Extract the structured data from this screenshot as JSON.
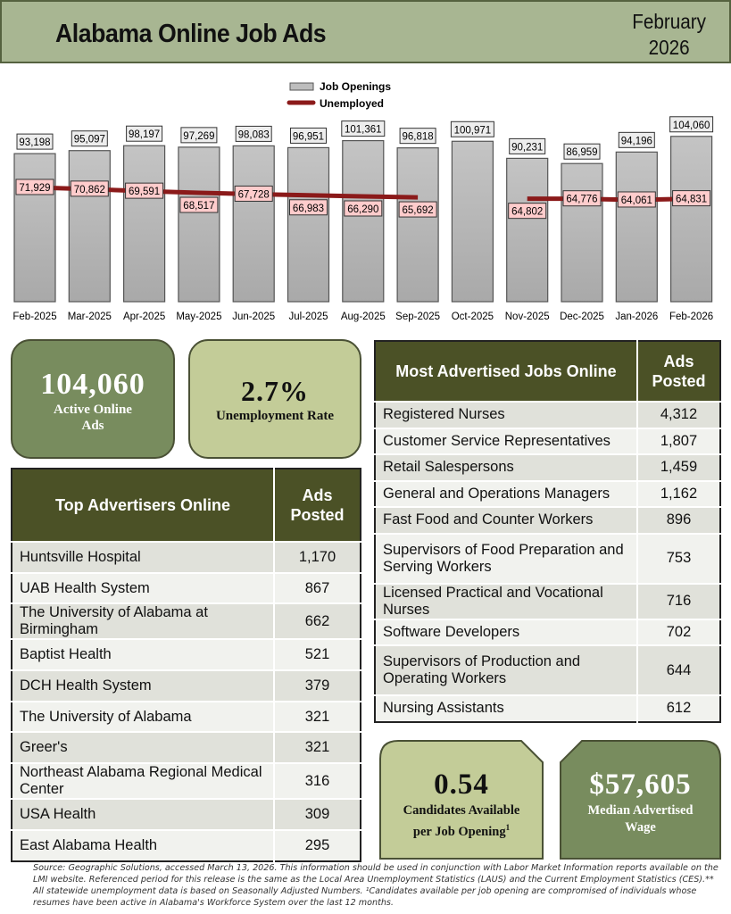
{
  "header": {
    "title": "Alabama Online Job Ads",
    "date_line1": "February",
    "date_line2": "2026"
  },
  "chart_data": {
    "type": "bar",
    "categories": [
      "Feb-2025",
      "Mar-2025",
      "Apr-2025",
      "May-2025",
      "Jun-2025",
      "Jul-2025",
      "Aug-2025",
      "Sep-2025",
      "Oct-2025",
      "Nov-2025",
      "Dec-2025",
      "Jan-2026",
      "Feb-2026"
    ],
    "series": [
      {
        "name": "Job Openings",
        "kind": "bar",
        "color": "#bdbdbd",
        "values": [
          93198,
          95097,
          98197,
          97269,
          98083,
          96951,
          101361,
          96818,
          100971,
          90231,
          86959,
          94196,
          104060
        ],
        "labels": [
          "93,198",
          "95,097",
          "98,197",
          "97,269",
          "98,083",
          "96,951",
          "101,361",
          "96,818",
          "100,971",
          "90,231",
          "86,959",
          "94,196",
          "104,060"
        ]
      },
      {
        "name": "Unemployed",
        "kind": "line",
        "color": "#8b1a1a",
        "values": [
          71929,
          70862,
          69591,
          68517,
          67728,
          66983,
          66290,
          65692,
          null,
          64802,
          64776,
          64061,
          64831
        ],
        "labels": [
          "71,929",
          "70,862",
          "69,591",
          "68,517",
          "67,728",
          "66,983",
          "66,290",
          "65,692",
          null,
          "64,802",
          "64,776",
          "64,061",
          "64,831"
        ]
      }
    ],
    "ylim": [
      0,
      110000
    ],
    "legend": "top-center",
    "grid": false
  },
  "stats": {
    "active_ads": {
      "value": "104,060",
      "label1": "Active Online",
      "label2": "Ads"
    },
    "unemployment_rate": {
      "value": "2.7%",
      "label": "Unemployment Rate"
    },
    "candidates": {
      "value": "0.54",
      "label1": "Candidates Available",
      "label2": "per Job Opening",
      "sup": "1"
    },
    "median_wage": {
      "value": "$57,605",
      "label1": "Median Advertised",
      "label2": "Wage"
    }
  },
  "top_advertisers": {
    "header": "Top Advertisers Online",
    "col2_line1": "Ads",
    "col2_line2": "Posted",
    "rows": [
      {
        "name": "Huntsville Hospital",
        "ads": "1,170"
      },
      {
        "name": "UAB Health System",
        "ads": "867"
      },
      {
        "name": "The University of Alabama at Birmingham",
        "ads": "662"
      },
      {
        "name": "Baptist Health",
        "ads": "521"
      },
      {
        "name": "DCH Health System",
        "ads": "379"
      },
      {
        "name": "The University of Alabama",
        "ads": "321"
      },
      {
        "name": "Greer's",
        "ads": "321"
      },
      {
        "name": "Northeast Alabama Regional Medical Center",
        "ads": "316"
      },
      {
        "name": "USA Health",
        "ads": "309"
      },
      {
        "name": "East Alabama Health",
        "ads": "295"
      }
    ]
  },
  "most_advertised": {
    "header": "Most Advertised Jobs Online",
    "col2_line1": "Ads",
    "col2_line2": "Posted",
    "rows": [
      {
        "name": "Registered Nurses",
        "ads": "4,312"
      },
      {
        "name": "Customer Service Representatives",
        "ads": "1,807"
      },
      {
        "name": "Retail Salespersons",
        "ads": "1,459"
      },
      {
        "name": "General and Operations Managers",
        "ads": "1,162"
      },
      {
        "name": "Fast Food and Counter Workers",
        "ads": "896"
      },
      {
        "name": "Supervisors of Food Preparation and Serving Workers",
        "ads": "753"
      },
      {
        "name": "Licensed Practical and Vocational Nurses",
        "ads": "716"
      },
      {
        "name": "Software Developers",
        "ads": "702"
      },
      {
        "name": "Supervisors of Production and Operating Workers",
        "ads": "644"
      },
      {
        "name": "Nursing Assistants",
        "ads": "612"
      }
    ]
  },
  "footer": "Source:  Geographic Solutions, accessed March 13, 2026. This information should be used in conjunction with Labor Market Information reports available on the LMI website. Referenced period for this release is the same as the Local Area Unemployment Statistics (LAUS) and the Current Employment Statistics (CES).** All statewide unemployment data is based on Seasonally Adjusted Numbers.  ¹Candidates available per job opening are compromised of individuals whose resumes have been active in Alabama's Workforce System over the last 12 months."
}
